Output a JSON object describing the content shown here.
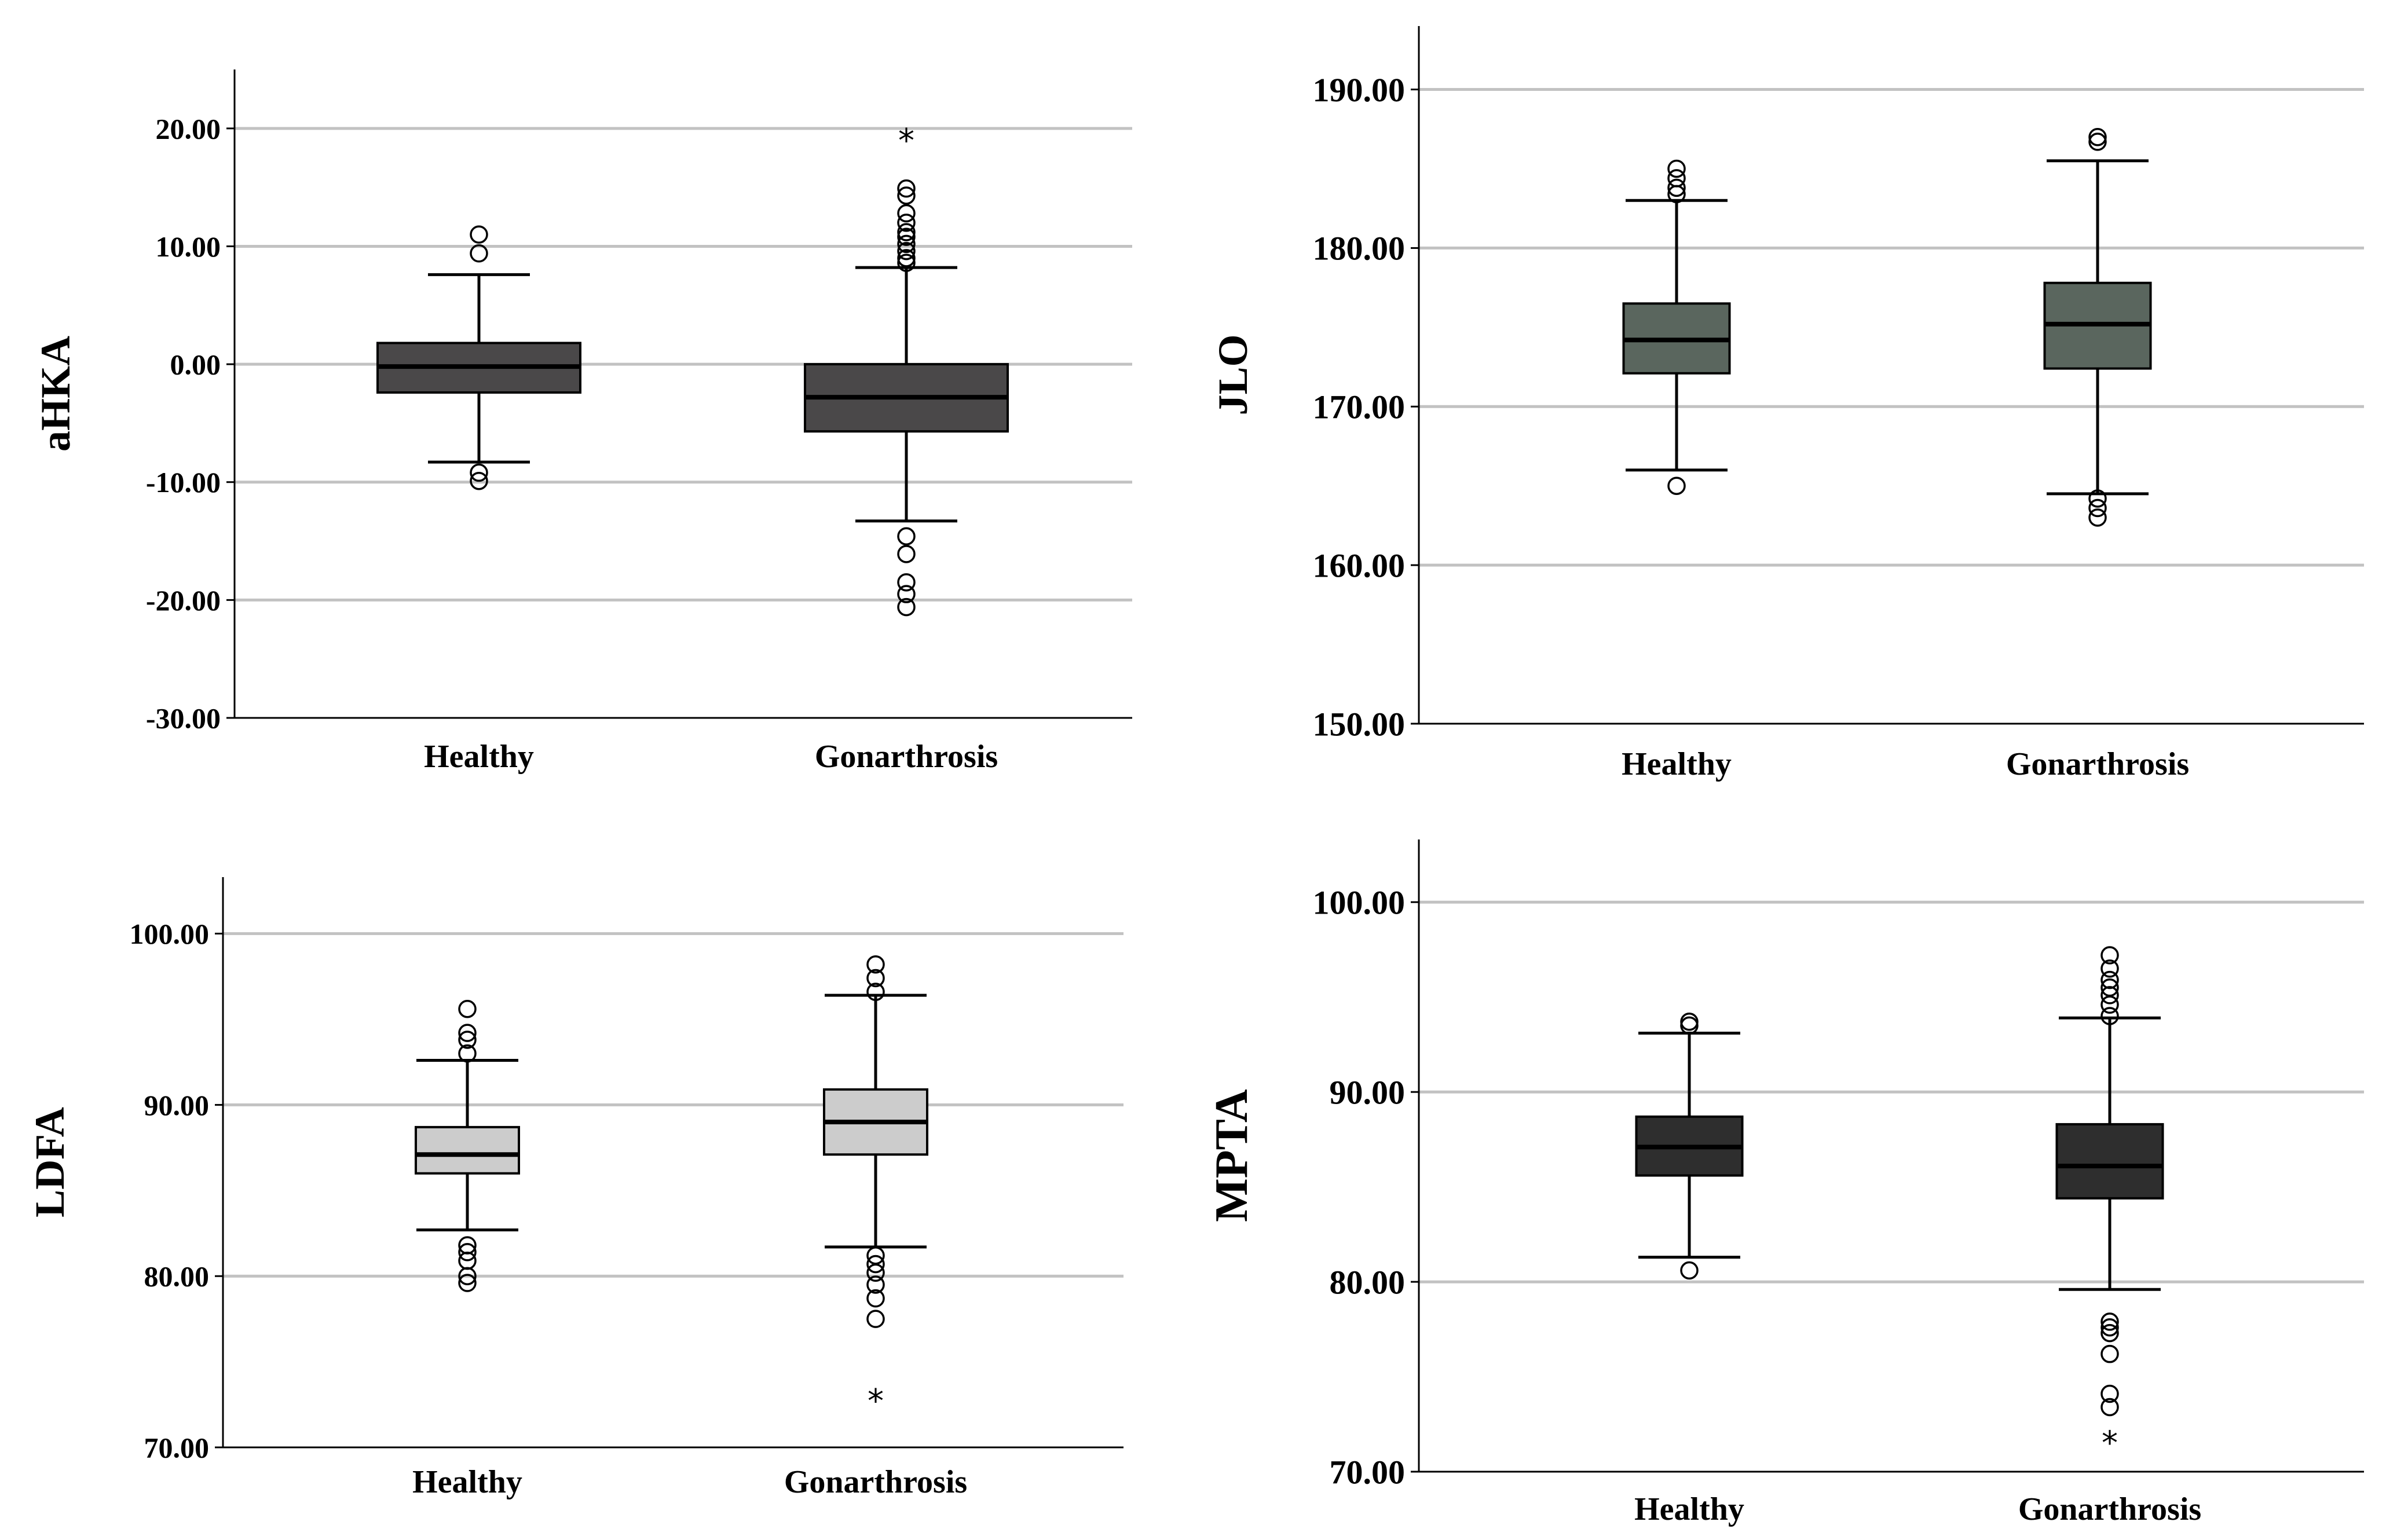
{
  "chart_data": [
    {
      "type": "boxplot",
      "ylabel": "aHKA",
      "ylim": [
        -30,
        25
      ],
      "yticks": [
        "-30.00",
        "-20.00",
        "-10.00",
        "0.00",
        "10.00",
        "20.00"
      ],
      "categories": [
        "Healthy",
        "Gonarthrosis"
      ],
      "box_color": "#4a4849",
      "boxes": [
        {
          "min": -8.3,
          "q1": -2.4,
          "median": -0.2,
          "q3": 1.8,
          "max": 7.6,
          "outliers": [
            11.0,
            9.4,
            -9.2,
            -9.9
          ],
          "extremes": []
        },
        {
          "min": -13.3,
          "q1": -5.7,
          "median": -2.8,
          "q3": 0.0,
          "max": 8.2,
          "outliers": [
            14.9,
            14.3,
            12.8,
            12.0,
            11.2,
            10.8,
            10.2,
            9.6,
            9.0,
            8.6,
            -14.6,
            -16.1,
            -18.5,
            -19.5,
            -20.6
          ],
          "extremes": [
            19.1
          ]
        }
      ]
    },
    {
      "type": "boxplot",
      "ylabel": "JLO",
      "ylim": [
        150,
        194
      ],
      "yticks": [
        "150.00",
        "160.00",
        "170.00",
        "180.00",
        "190.00"
      ],
      "categories": [
        "Healthy",
        "Gonarthrosis"
      ],
      "box_color": "#5a665e",
      "boxes": [
        {
          "min": 166.0,
          "q1": 172.1,
          "median": 174.2,
          "q3": 176.5,
          "max": 183.0,
          "outliers": [
            185.0,
            184.4,
            183.8,
            183.4,
            165.0
          ],
          "extremes": []
        },
        {
          "min": 164.5,
          "q1": 172.4,
          "median": 175.2,
          "q3": 177.8,
          "max": 185.5,
          "outliers": [
            187.0,
            186.7,
            164.2,
            163.6,
            163.0
          ],
          "extremes": []
        }
      ]
    },
    {
      "type": "boxplot",
      "ylabel": "LDFA",
      "ylim": [
        70,
        103.3
      ],
      "yticks": [
        "70.00",
        "80.00",
        "90.00",
        "100.00"
      ],
      "categories": [
        "Healthy",
        "Gonarthrosis"
      ],
      "box_color": "#cccccc",
      "boxes": [
        {
          "min": 82.7,
          "q1": 86.0,
          "median": 87.1,
          "q3": 88.7,
          "max": 92.6,
          "outliers": [
            95.6,
            94.2,
            93.8,
            93.0,
            81.8,
            81.4,
            80.9,
            80.0,
            79.6
          ],
          "extremes": []
        },
        {
          "min": 81.7,
          "q1": 87.1,
          "median": 89.0,
          "q3": 90.9,
          "max": 96.4,
          "outliers": [
            98.2,
            97.4,
            96.6,
            81.2,
            80.7,
            80.2,
            79.5,
            78.7,
            77.5
          ],
          "extremes": [
            72.8
          ]
        }
      ]
    },
    {
      "type": "boxplot",
      "ylabel": "MPTA",
      "ylim": [
        70,
        103.3
      ],
      "yticks": [
        "70.00",
        "80.00",
        "90.00",
        "100.00"
      ],
      "categories": [
        "Healthy",
        "Gonarthrosis"
      ],
      "box_color": "#2e2e2e",
      "boxes": [
        {
          "min": 81.3,
          "q1": 85.6,
          "median": 87.1,
          "q3": 88.7,
          "max": 93.1,
          "outliers": [
            93.7,
            93.5,
            80.6
          ],
          "extremes": []
        },
        {
          "min": 79.6,
          "q1": 84.4,
          "median": 86.1,
          "q3": 88.3,
          "max": 93.9,
          "outliers": [
            97.2,
            96.5,
            95.9,
            95.5,
            95.1,
            94.6,
            94.0,
            77.9,
            77.6,
            77.3,
            76.2,
            74.1,
            73.4
          ],
          "extremes": [
            71.6
          ]
        }
      ]
    }
  ]
}
